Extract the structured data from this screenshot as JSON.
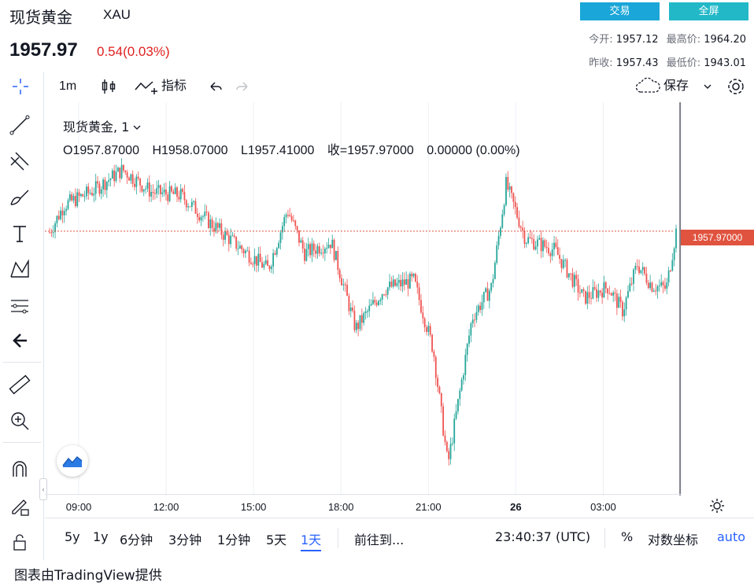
{
  "header": {
    "title": "现货黄金",
    "symbol": "XAU",
    "price": "1957.97",
    "change": "0.54(0.03%)",
    "trade_button": "交易",
    "fullscreen_button": "全屏",
    "stats": {
      "open_label": "今开:",
      "open": "1957.12",
      "high_label": "最高价:",
      "high": "1964.20",
      "prev_close_label": "昨收:",
      "prev_close": "1957.43",
      "low_label": "最低价:",
      "low": "1943.01"
    }
  },
  "toolbar": {
    "interval": "1m",
    "indicators": "指标",
    "save": "保存"
  },
  "legend": {
    "title": "现货黄金, 1",
    "open": "O1957.87000",
    "high": "H1958.07000",
    "low": "L1957.41000",
    "close": "收=1957.97000",
    "change": "0.00000 (0.00%)"
  },
  "price_tag": "1957.97000",
  "bottom": {
    "ranges": [
      "5y",
      "1y",
      "6分钟",
      "3分钟",
      "1分钟",
      "5天",
      "1天"
    ],
    "active_range": "1天",
    "goto": "前往到...",
    "time": "23:40:37 (UTC)",
    "percent": "%",
    "log": "对数坐标",
    "auto": "auto"
  },
  "footer": "图表由TradingView提供",
  "colors": {
    "up": "#26a69a",
    "down": "#ef5350",
    "accent": "#2962ff",
    "price_line": "#e0533f",
    "trade_button": "#1aa6d8",
    "fullscreen_button": "#22b8c8"
  },
  "chart_data": {
    "type": "candlestick",
    "title": "现货黄金, 1",
    "x_ticks": [
      "09:00",
      "12:00",
      "15:00",
      "18:00",
      "21:00",
      "26",
      "03:00"
    ],
    "last_price": 1957.97,
    "approx_low": 1943.01,
    "approx_high": 1964.2,
    "trend_points": [
      [
        "08:00",
        1957.9
      ],
      [
        "08:30",
        1959.6
      ],
      [
        "09:30",
        1960.5
      ],
      [
        "10:30",
        1961.8
      ],
      [
        "11:30",
        1960.4
      ],
      [
        "12:30",
        1960.2
      ],
      [
        "13:30",
        1958.5
      ],
      [
        "14:30",
        1957.0
      ],
      [
        "15:30",
        1955.6
      ],
      [
        "16:10",
        1959.3
      ],
      [
        "16:45",
        1956.6
      ],
      [
        "17:40",
        1957.3
      ],
      [
        "18:30",
        1951.9
      ],
      [
        "19:30",
        1954.4
      ],
      [
        "20:30",
        1954.9
      ],
      [
        "21:10",
        1950.6
      ],
      [
        "21:40",
        1943.4
      ],
      [
        "22:30",
        1952.6
      ],
      [
        "23:10",
        1954.5
      ],
      [
        "23:40",
        1960.9
      ],
      [
        "00:20",
        1957.5
      ],
      [
        "01:20",
        1956.8
      ],
      [
        "02:20",
        1953.8
      ],
      [
        "03:10",
        1954.5
      ],
      [
        "03:40",
        1953.0
      ],
      [
        "04:10",
        1955.9
      ],
      [
        "04:40",
        1954.6
      ],
      [
        "05:10",
        1954.4
      ],
      [
        "05:30",
        1957.97
      ]
    ]
  }
}
